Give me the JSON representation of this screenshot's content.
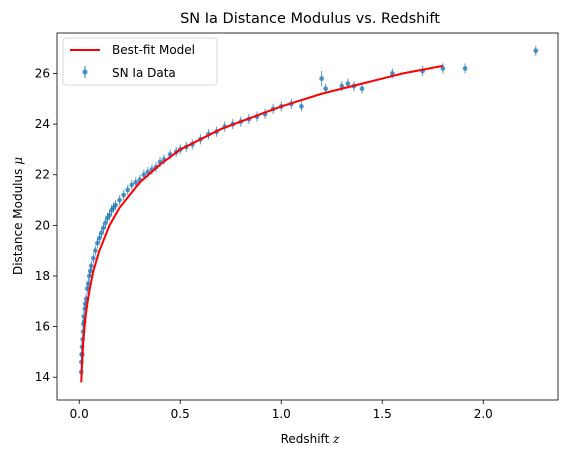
{
  "chart_data": {
    "type": "scatter",
    "title": "SN Ia Distance Modulus vs. Redshift",
    "xlabel": "Redshift z",
    "ylabel": "Distance Modulus μ",
    "xlim": [
      -0.11,
      2.37
    ],
    "ylim": [
      13.1,
      27.6
    ],
    "xticks": [
      "0.0",
      "0.5",
      "1.0",
      "1.5",
      "2.0"
    ],
    "xtick_values": [
      0.0,
      0.5,
      1.0,
      1.5,
      2.0
    ],
    "yticks": [
      "14",
      "16",
      "18",
      "20",
      "22",
      "24",
      "26"
    ],
    "ytick_values": [
      14,
      16,
      18,
      20,
      22,
      24,
      26
    ],
    "grid": false,
    "legend_position": "top-left",
    "series": [
      {
        "name": "SN Ia Data",
        "kind": "errorbar",
        "color": "#1f77b4",
        "points": [
          [
            0.01,
            14.2,
            0.4
          ],
          [
            0.011,
            14.6,
            0.3
          ],
          [
            0.012,
            14.9,
            0.3
          ],
          [
            0.014,
            15.2,
            0.3
          ],
          [
            0.015,
            14.9,
            0.3
          ],
          [
            0.017,
            15.5,
            0.2
          ],
          [
            0.019,
            15.8,
            0.2
          ],
          [
            0.021,
            16.1,
            0.2
          ],
          [
            0.023,
            16.4,
            0.2
          ],
          [
            0.025,
            16.2,
            0.2
          ],
          [
            0.028,
            16.7,
            0.2
          ],
          [
            0.03,
            16.9,
            0.2
          ],
          [
            0.035,
            17.1,
            0.2
          ],
          [
            0.04,
            17.5,
            0.2
          ],
          [
            0.045,
            17.7,
            0.2
          ],
          [
            0.05,
            18.0,
            0.2
          ],
          [
            0.055,
            18.2,
            0.2
          ],
          [
            0.06,
            18.4,
            0.2
          ],
          [
            0.07,
            18.7,
            0.2
          ],
          [
            0.08,
            19.0,
            0.2
          ],
          [
            0.09,
            19.3,
            0.2
          ],
          [
            0.1,
            19.5,
            0.2
          ],
          [
            0.11,
            19.7,
            0.2
          ],
          [
            0.12,
            19.9,
            0.2
          ],
          [
            0.13,
            20.1,
            0.2
          ],
          [
            0.14,
            20.3,
            0.2
          ],
          [
            0.15,
            20.4,
            0.2
          ],
          [
            0.16,
            20.6,
            0.2
          ],
          [
            0.17,
            20.7,
            0.2
          ],
          [
            0.18,
            20.8,
            0.2
          ],
          [
            0.2,
            21.0,
            0.2
          ],
          [
            0.22,
            21.2,
            0.2
          ],
          [
            0.24,
            21.4,
            0.2
          ],
          [
            0.26,
            21.6,
            0.2
          ],
          [
            0.28,
            21.7,
            0.2
          ],
          [
            0.3,
            21.8,
            0.2
          ],
          [
            0.32,
            22.0,
            0.2
          ],
          [
            0.34,
            22.1,
            0.2
          ],
          [
            0.36,
            22.2,
            0.2
          ],
          [
            0.38,
            22.3,
            0.2
          ],
          [
            0.4,
            22.5,
            0.2
          ],
          [
            0.42,
            22.6,
            0.2
          ],
          [
            0.45,
            22.8,
            0.2
          ],
          [
            0.48,
            22.9,
            0.2
          ],
          [
            0.5,
            23.0,
            0.2
          ],
          [
            0.53,
            23.1,
            0.2
          ],
          [
            0.56,
            23.2,
            0.2
          ],
          [
            0.6,
            23.4,
            0.2
          ],
          [
            0.64,
            23.6,
            0.2
          ],
          [
            0.68,
            23.7,
            0.2
          ],
          [
            0.72,
            23.9,
            0.2
          ],
          [
            0.76,
            24.0,
            0.2
          ],
          [
            0.8,
            24.1,
            0.2
          ],
          [
            0.84,
            24.2,
            0.2
          ],
          [
            0.88,
            24.3,
            0.2
          ],
          [
            0.92,
            24.4,
            0.2
          ],
          [
            0.96,
            24.6,
            0.2
          ],
          [
            1.0,
            24.7,
            0.2
          ],
          [
            1.05,
            24.8,
            0.2
          ],
          [
            1.1,
            24.7,
            0.2
          ],
          [
            1.2,
            25.8,
            0.3
          ],
          [
            1.22,
            25.4,
            0.2
          ],
          [
            1.3,
            25.5,
            0.2
          ],
          [
            1.33,
            25.6,
            0.2
          ],
          [
            1.36,
            25.5,
            0.2
          ],
          [
            1.4,
            25.4,
            0.2
          ],
          [
            1.55,
            26.0,
            0.2
          ],
          [
            1.7,
            26.1,
            0.2
          ],
          [
            1.8,
            26.2,
            0.2
          ],
          [
            1.91,
            26.2,
            0.2
          ],
          [
            2.26,
            26.9,
            0.2
          ]
        ]
      },
      {
        "name": "Best-fit Model",
        "kind": "line",
        "color": "#ff0000",
        "points": [
          [
            0.01,
            13.8
          ],
          [
            0.015,
            14.7
          ],
          [
            0.02,
            15.4
          ],
          [
            0.03,
            16.3
          ],
          [
            0.04,
            16.9
          ],
          [
            0.05,
            17.4
          ],
          [
            0.07,
            18.2
          ],
          [
            0.1,
            19.0
          ],
          [
            0.15,
            20.0
          ],
          [
            0.2,
            20.7
          ],
          [
            0.3,
            21.7
          ],
          [
            0.4,
            22.4
          ],
          [
            0.5,
            23.0
          ],
          [
            0.6,
            23.4
          ],
          [
            0.7,
            23.8
          ],
          [
            0.8,
            24.1
          ],
          [
            0.9,
            24.4
          ],
          [
            1.0,
            24.7
          ],
          [
            1.2,
            25.2
          ],
          [
            1.4,
            25.6
          ],
          [
            1.6,
            26.0
          ],
          [
            1.8,
            26.3
          ]
        ]
      }
    ]
  }
}
